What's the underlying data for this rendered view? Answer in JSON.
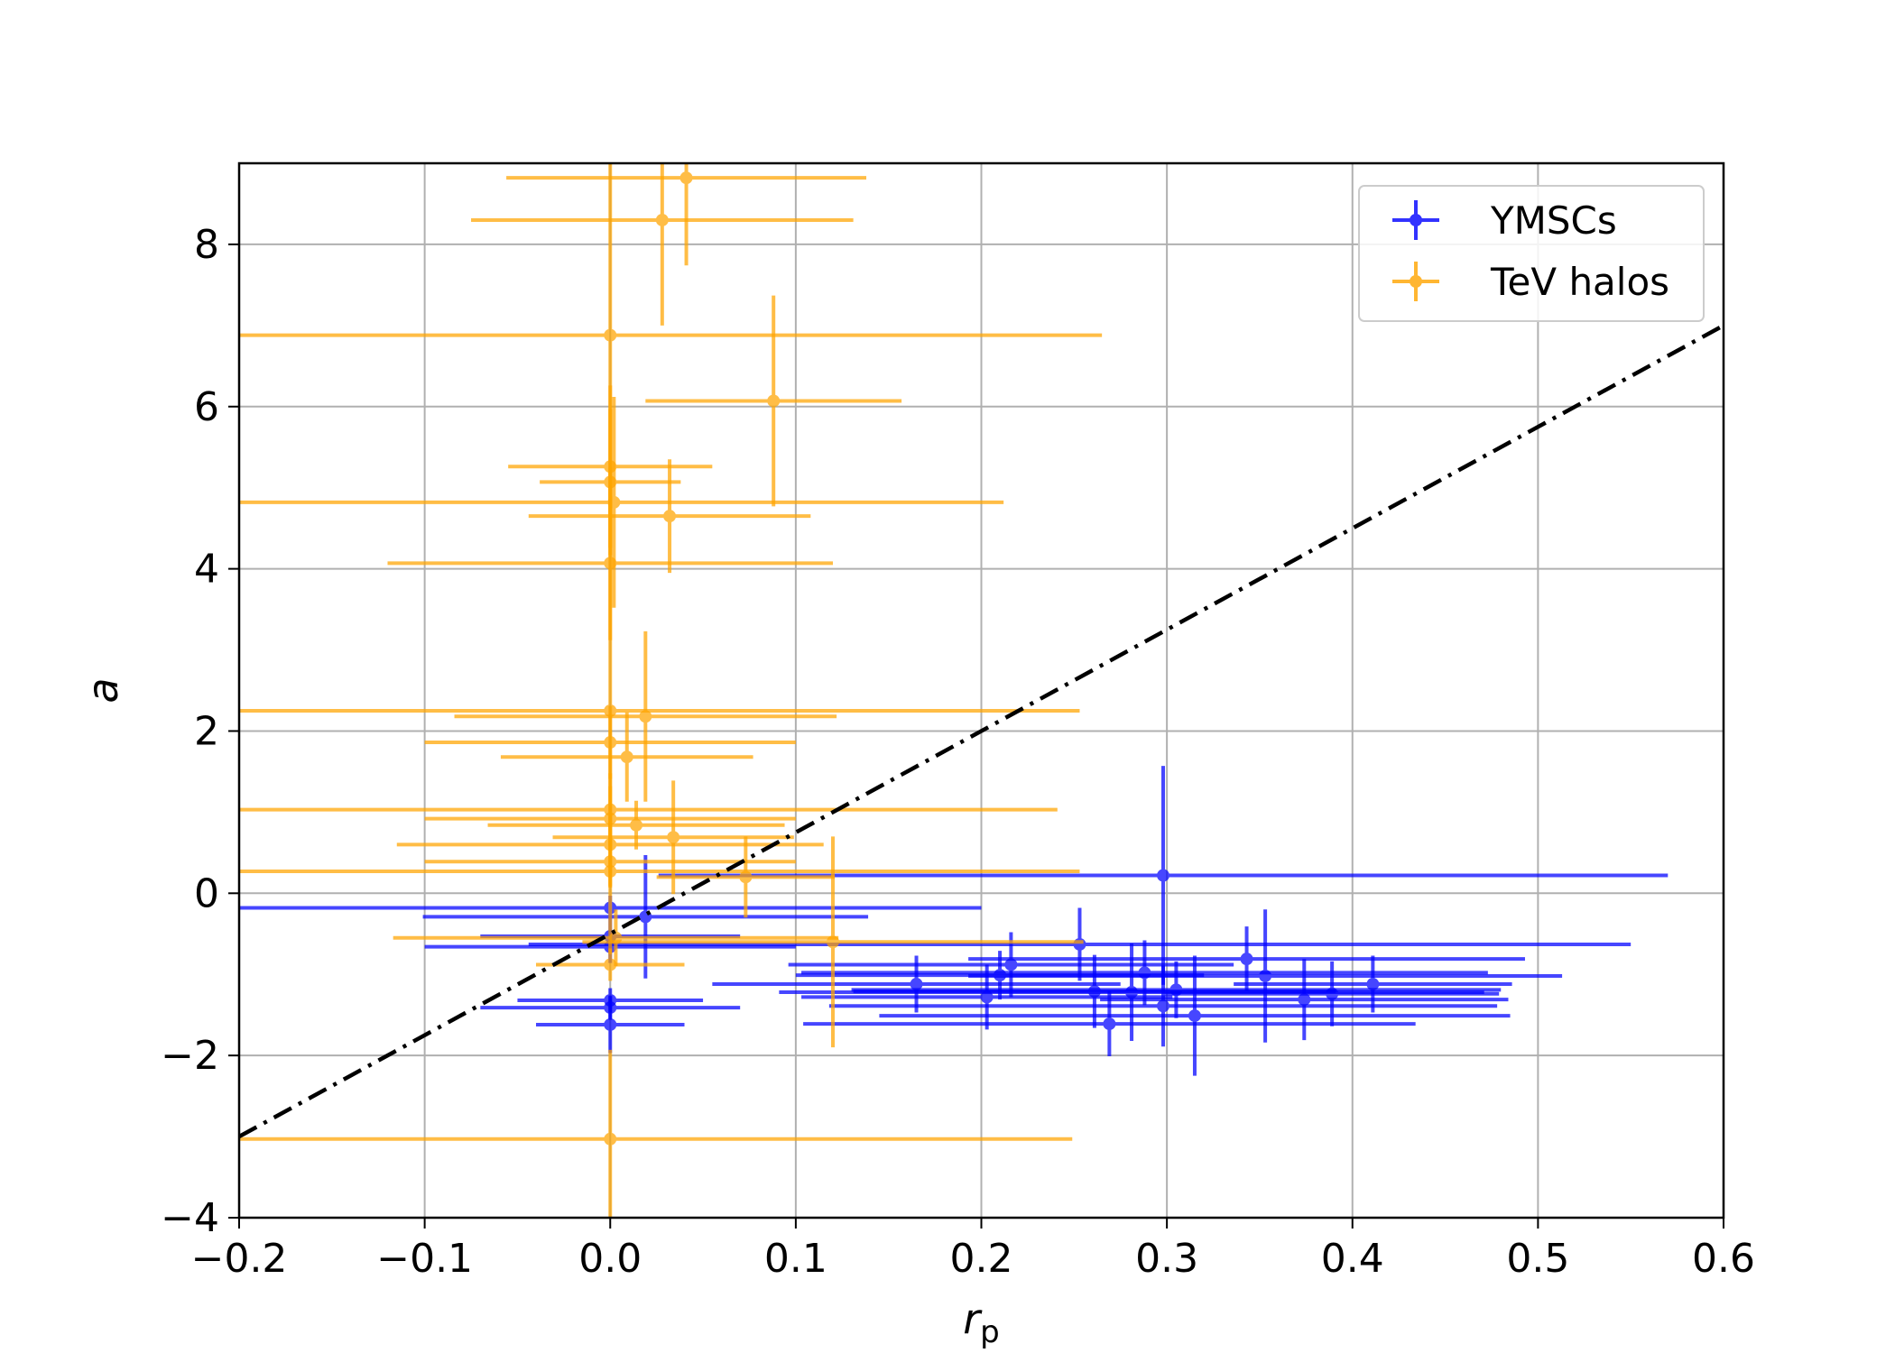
{
  "chart_data": {
    "type": "scatter",
    "title": "",
    "xlabel": "r",
    "xlabel_sub": "p",
    "ylabel": "a",
    "xlim": [
      -0.2,
      0.6
    ],
    "ylim": [
      -4,
      9
    ],
    "xticks": [
      -0.2,
      -0.1,
      0.0,
      0.1,
      0.2,
      0.3,
      0.4,
      0.5,
      0.6
    ],
    "xtick_labels": [
      "−0.2",
      "−0.1",
      "0.0",
      "0.1",
      "0.2",
      "0.3",
      "0.4",
      "0.5",
      "0.6"
    ],
    "yticks": [
      -4,
      -2,
      0,
      2,
      4,
      6,
      8
    ],
    "ytick_labels": [
      "−4",
      "−2",
      "0",
      "2",
      "4",
      "6",
      "8"
    ],
    "grid": true,
    "legend_position": "top-right",
    "reference_line": {
      "style": "dash-dot",
      "color": "#000000",
      "points": [
        [
          -0.2,
          -3.0
        ],
        [
          0.6,
          7.0
        ]
      ]
    },
    "series": [
      {
        "name": "YMSCs",
        "color": "#0000ff",
        "points": [
          {
            "x": 0.298,
            "y": 0.22,
            "xerr": 0.272,
            "yerr": 1.35
          },
          {
            "x": 0.253,
            "y": -0.63,
            "xerr": 0.297,
            "yerr": 0.45
          },
          {
            "x": 0.353,
            "y": -1.02,
            "xerr": 0.16,
            "yerr": 0.82
          },
          {
            "x": 0.343,
            "y": -0.81,
            "xerr": 0.15,
            "yerr": 0.4
          },
          {
            "x": 0.374,
            "y": -1.31,
            "xerr": 0.11,
            "yerr": 0.5
          },
          {
            "x": 0.389,
            "y": -1.24,
            "xerr": 0.09,
            "yerr": 0.4
          },
          {
            "x": 0.411,
            "y": -1.12,
            "xerr": 0.075,
            "yerr": 0.35
          },
          {
            "x": 0.315,
            "y": -1.51,
            "xerr": 0.17,
            "yerr": 0.74
          },
          {
            "x": 0.305,
            "y": -1.19,
            "xerr": 0.175,
            "yerr": 0.35
          },
          {
            "x": 0.298,
            "y": -1.39,
            "xerr": 0.18,
            "yerr": 0.5
          },
          {
            "x": 0.288,
            "y": -0.98,
            "xerr": 0.185,
            "yerr": 0.4
          },
          {
            "x": 0.281,
            "y": -1.22,
            "xerr": 0.19,
            "yerr": 0.6
          },
          {
            "x": 0.269,
            "y": -1.61,
            "xerr": 0.165,
            "yerr": 0.4
          },
          {
            "x": 0.261,
            "y": -1.21,
            "xerr": 0.13,
            "yerr": 0.45
          },
          {
            "x": 0.216,
            "y": -0.88,
            "xerr": 0.12,
            "yerr": 0.4
          },
          {
            "x": 0.21,
            "y": -1.01,
            "xerr": 0.11,
            "yerr": 0.3
          },
          {
            "x": 0.203,
            "y": -1.28,
            "xerr": 0.1,
            "yerr": 0.4
          },
          {
            "x": 0.165,
            "y": -1.12,
            "xerr": 0.11,
            "yerr": 0.35
          },
          {
            "x": 0.019,
            "y": -0.29,
            "xerr": 0.12,
            "yerr": 0.76
          },
          {
            "x": 0.0,
            "y": -0.53,
            "xerr": 0.07,
            "yerr": 0.2
          },
          {
            "x": 0.0,
            "y": -0.66,
            "xerr": 0.1,
            "yerr": 0.2
          },
          {
            "x": 0.0,
            "y": -1.32,
            "xerr": 0.05,
            "yerr": 0.15
          },
          {
            "x": 0.0,
            "y": -1.41,
            "xerr": 0.07,
            "yerr": 0.15
          },
          {
            "x": 0.0,
            "y": -1.62,
            "xerr": 0.04,
            "yerr": 0.35
          },
          {
            "x": 0.0,
            "y": -0.18,
            "xerr": 0.2,
            "yerr": 0.15
          }
        ]
      },
      {
        "name": "TeV halos",
        "color": "#ffa500",
        "points": [
          {
            "x": 0.041,
            "y": 8.82,
            "xerr": 0.097,
            "yerr": 1.08
          },
          {
            "x": 0.028,
            "y": 8.3,
            "xerr": 0.103,
            "yerr": 1.3
          },
          {
            "x": 0.0,
            "y": 6.88,
            "xerr": 0.265,
            "yerr": 2.2
          },
          {
            "x": 0.088,
            "y": 6.07,
            "xerr": 0.069,
            "yerr": 1.3
          },
          {
            "x": 0.0,
            "y": 5.26,
            "xerr": 0.055,
            "yerr": 1.0
          },
          {
            "x": 0.0,
            "y": 5.07,
            "xerr": 0.038,
            "yerr": 0.9
          },
          {
            "x": 0.002,
            "y": 4.82,
            "xerr": 0.21,
            "yerr": 1.3
          },
          {
            "x": 0.032,
            "y": 4.65,
            "xerr": 0.076,
            "yerr": 0.7
          },
          {
            "x": 0.0,
            "y": 4.07,
            "xerr": 0.12,
            "yerr": 0.95
          },
          {
            "x": 0.0,
            "y": 2.25,
            "xerr": 0.253,
            "yerr": 3.0
          },
          {
            "x": 0.019,
            "y": 2.18,
            "xerr": 0.103,
            "yerr": 1.05
          },
          {
            "x": 0.0,
            "y": 1.86,
            "xerr": 0.1,
            "yerr": 0.45
          },
          {
            "x": 0.009,
            "y": 1.68,
            "xerr": 0.068,
            "yerr": 0.55
          },
          {
            "x": 0.0,
            "y": 1.03,
            "xerr": 0.241,
            "yerr": 0.45
          },
          {
            "x": 0.0,
            "y": 0.92,
            "xerr": 0.1,
            "yerr": 0.4
          },
          {
            "x": 0.014,
            "y": 0.84,
            "xerr": 0.08,
            "yerr": 0.3
          },
          {
            "x": 0.034,
            "y": 0.69,
            "xerr": 0.065,
            "yerr": 0.7
          },
          {
            "x": 0.0,
            "y": 0.6,
            "xerr": 0.115,
            "yerr": 0.35
          },
          {
            "x": 0.0,
            "y": 0.39,
            "xerr": 0.1,
            "yerr": 0.3
          },
          {
            "x": 0.073,
            "y": 0.2,
            "xerr": 0.048,
            "yerr": 0.5
          },
          {
            "x": 0.0,
            "y": 0.27,
            "xerr": 0.253,
            "yerr": 0.2
          },
          {
            "x": 0.12,
            "y": -0.6,
            "xerr": 0.135,
            "yerr": 1.3
          },
          {
            "x": 0.003,
            "y": -0.55,
            "xerr": 0.12,
            "yerr": 0.35
          },
          {
            "x": 0.0,
            "y": -0.88,
            "xerr": 0.04,
            "yerr": 0.2
          },
          {
            "x": 0.0,
            "y": -3.03,
            "xerr": 0.249,
            "yerr": 1.1
          }
        ]
      }
    ]
  }
}
